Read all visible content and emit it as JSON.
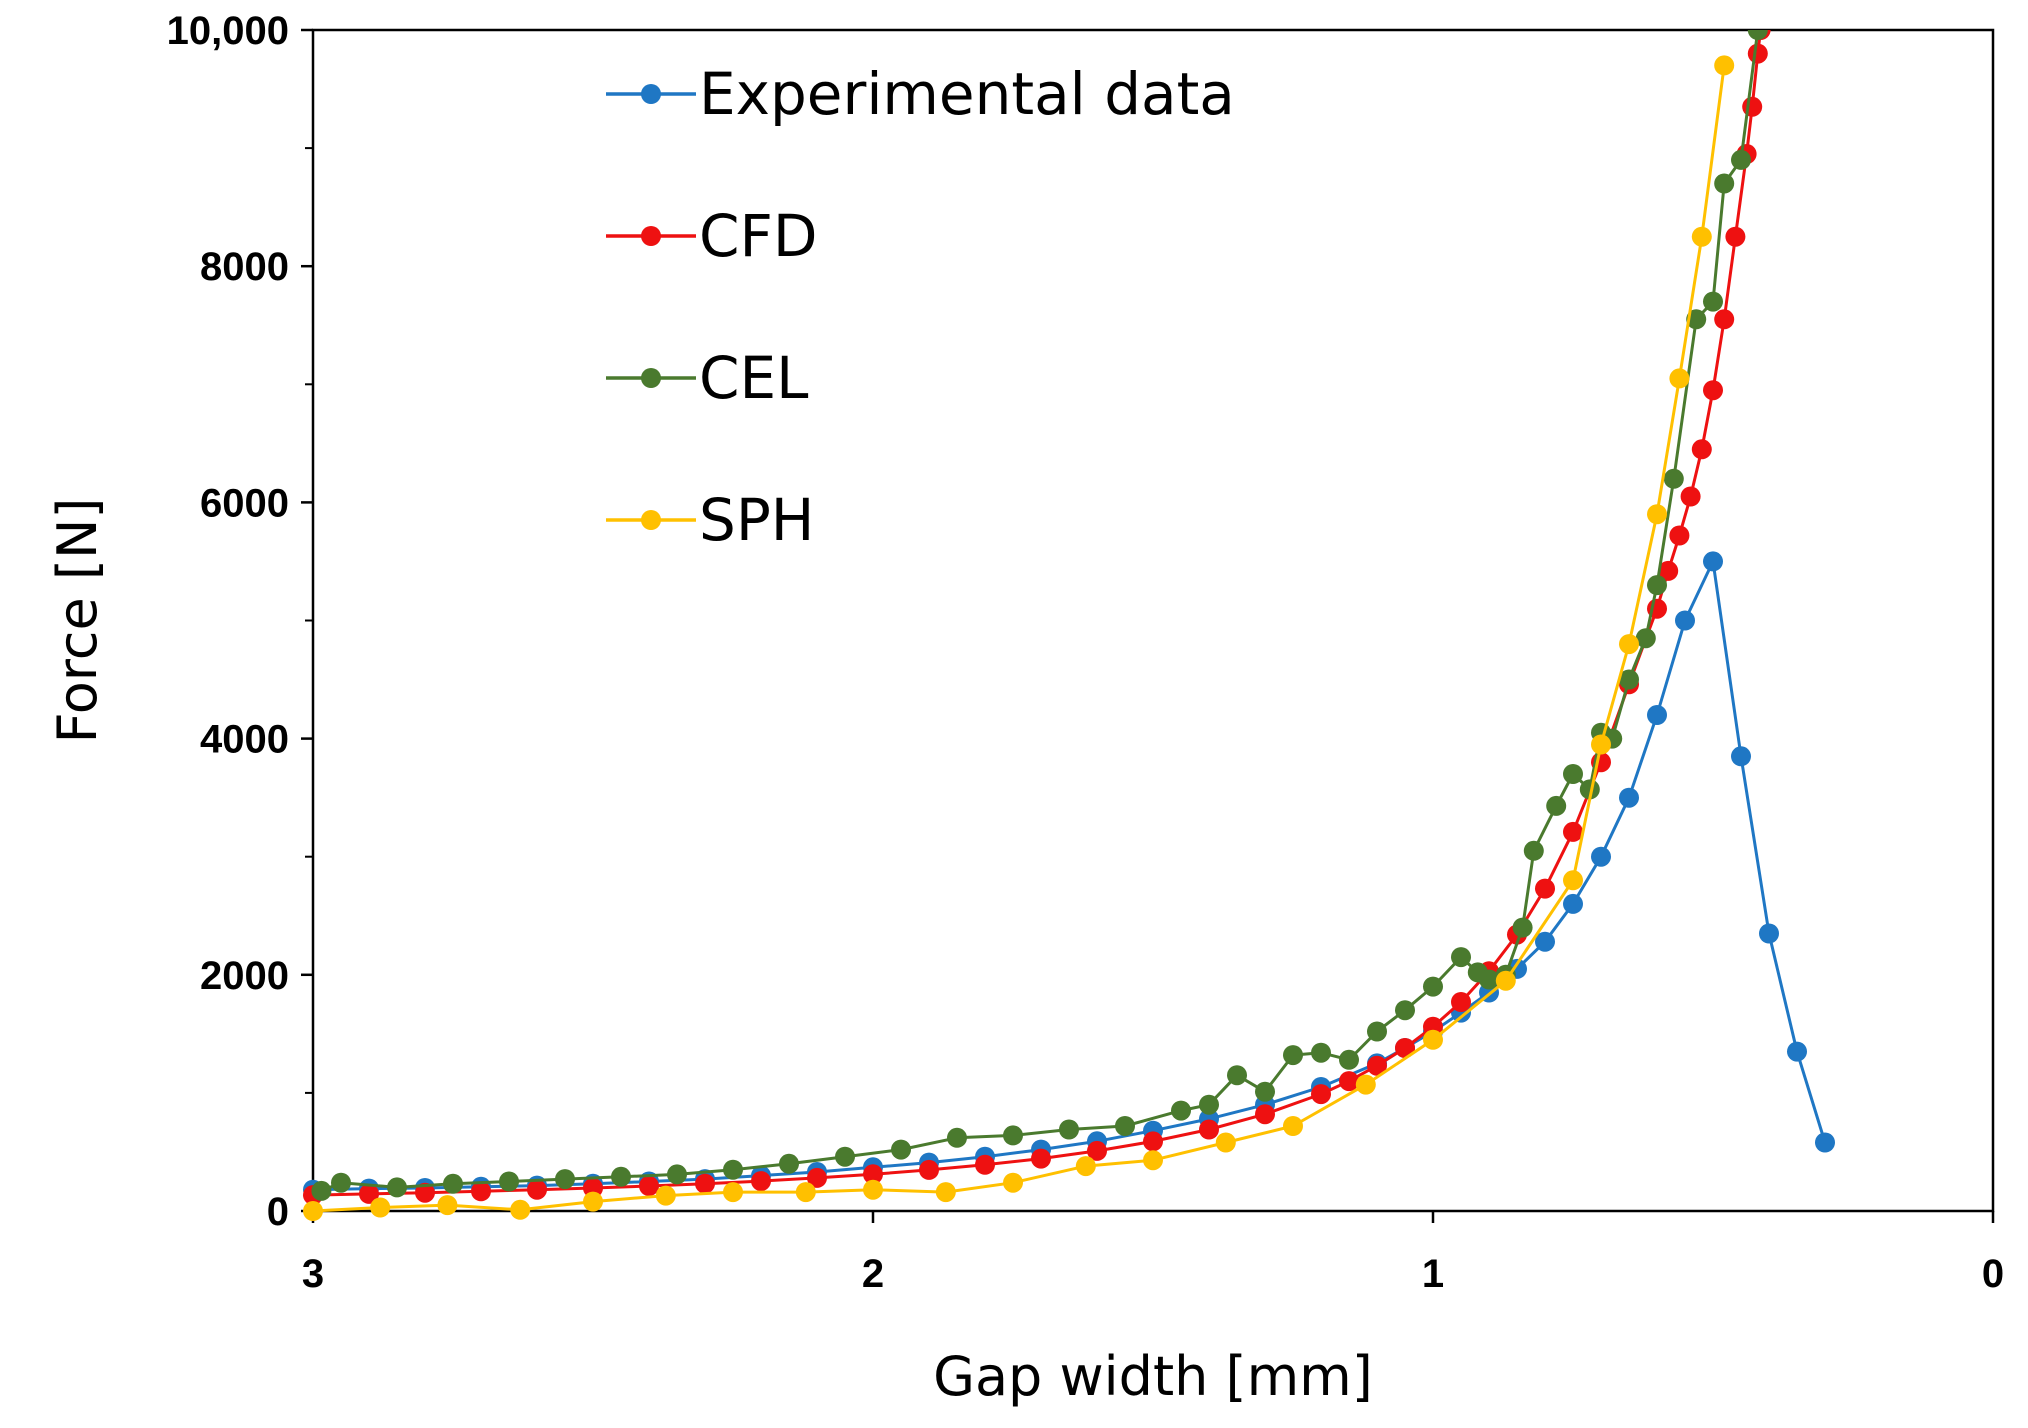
{
  "chart_data": {
    "type": "line",
    "title": "",
    "xlabel": "Gap width [mm]",
    "ylabel": "Force [N]",
    "xlim": [
      3,
      0
    ],
    "ylim": [
      0,
      10000
    ],
    "x_reversed": true,
    "x_ticks": [
      3,
      2,
      1,
      0
    ],
    "x_tick_labels": [
      "3",
      "2",
      "1",
      "0"
    ],
    "y_ticks": [
      0,
      2000,
      4000,
      6000,
      8000,
      10000
    ],
    "y_tick_labels": [
      "0",
      "2000",
      "4000",
      "6000",
      "8000",
      "10,000"
    ],
    "y_minor_step": 1000,
    "grid": false,
    "legend_position": "top-left",
    "series": [
      {
        "name": "Experimental data",
        "color": "#1f77c4",
        "points": [
          [
            3.0,
            180
          ],
          [
            2.9,
            190
          ],
          [
            2.8,
            195
          ],
          [
            2.7,
            205
          ],
          [
            2.6,
            215
          ],
          [
            2.5,
            230
          ],
          [
            2.4,
            250
          ],
          [
            2.3,
            270
          ],
          [
            2.2,
            300
          ],
          [
            2.1,
            330
          ],
          [
            2.0,
            370
          ],
          [
            1.9,
            410
          ],
          [
            1.8,
            460
          ],
          [
            1.7,
            520
          ],
          [
            1.6,
            590
          ],
          [
            1.5,
            680
          ],
          [
            1.4,
            780
          ],
          [
            1.3,
            900
          ],
          [
            1.2,
            1050
          ],
          [
            1.1,
            1250
          ],
          [
            1.05,
            1380
          ],
          [
            1.0,
            1520
          ],
          [
            0.95,
            1680
          ],
          [
            0.9,
            1850
          ],
          [
            0.85,
            2050
          ],
          [
            0.8,
            2280
          ],
          [
            0.75,
            2600
          ],
          [
            0.7,
            3000
          ],
          [
            0.65,
            3500
          ],
          [
            0.6,
            4200
          ],
          [
            0.55,
            5000
          ],
          [
            0.5,
            5500
          ],
          [
            0.45,
            3850
          ],
          [
            0.4,
            2350
          ],
          [
            0.35,
            1350
          ],
          [
            0.3,
            580
          ]
        ]
      },
      {
        "name": "CFD",
        "color": "#ee1111",
        "points": [
          [
            3.0,
            135
          ],
          [
            2.9,
            145
          ],
          [
            2.8,
            155
          ],
          [
            2.7,
            167
          ],
          [
            2.6,
            180
          ],
          [
            2.5,
            195
          ],
          [
            2.4,
            212
          ],
          [
            2.3,
            231
          ],
          [
            2.2,
            253
          ],
          [
            2.1,
            280
          ],
          [
            2.0,
            311
          ],
          [
            1.9,
            348
          ],
          [
            1.8,
            391
          ],
          [
            1.7,
            444
          ],
          [
            1.6,
            509
          ],
          [
            1.5,
            589
          ],
          [
            1.4,
            690
          ],
          [
            1.3,
            820
          ],
          [
            1.2,
            990
          ],
          [
            1.15,
            1100
          ],
          [
            1.1,
            1230
          ],
          [
            1.05,
            1380
          ],
          [
            1.0,
            1560
          ],
          [
            0.95,
            1770
          ],
          [
            0.9,
            2030
          ],
          [
            0.85,
            2340
          ],
          [
            0.8,
            2730
          ],
          [
            0.75,
            3210
          ],
          [
            0.7,
            3800
          ],
          [
            0.65,
            4460
          ],
          [
            0.6,
            5100
          ],
          [
            0.58,
            5420
          ],
          [
            0.56,
            5720
          ],
          [
            0.54,
            6050
          ],
          [
            0.52,
            6450
          ],
          [
            0.5,
            6950
          ],
          [
            0.48,
            7550
          ],
          [
            0.46,
            8250
          ],
          [
            0.44,
            8950
          ],
          [
            0.43,
            9350
          ],
          [
            0.42,
            9800
          ],
          [
            0.415,
            10000
          ]
        ]
      },
      {
        "name": "CEL",
        "color": "#4a7a2e",
        "points": [
          [
            2.985,
            170
          ],
          [
            2.95,
            240
          ],
          [
            2.85,
            200
          ],
          [
            2.75,
            230
          ],
          [
            2.65,
            250
          ],
          [
            2.55,
            270
          ],
          [
            2.45,
            290
          ],
          [
            2.35,
            310
          ],
          [
            2.25,
            350
          ],
          [
            2.15,
            400
          ],
          [
            2.05,
            460
          ],
          [
            1.95,
            520
          ],
          [
            1.85,
            620
          ],
          [
            1.75,
            640
          ],
          [
            1.65,
            690
          ],
          [
            1.55,
            720
          ],
          [
            1.45,
            850
          ],
          [
            1.4,
            900
          ],
          [
            1.35,
            1150
          ],
          [
            1.3,
            1010
          ],
          [
            1.25,
            1320
          ],
          [
            1.2,
            1340
          ],
          [
            1.15,
            1280
          ],
          [
            1.1,
            1520
          ],
          [
            1.05,
            1700
          ],
          [
            1.0,
            1900
          ],
          [
            0.95,
            2150
          ],
          [
            0.92,
            2020
          ],
          [
            0.9,
            1960
          ],
          [
            0.87,
            2000
          ],
          [
            0.84,
            2400
          ],
          [
            0.82,
            3050
          ],
          [
            0.78,
            3430
          ],
          [
            0.75,
            3700
          ],
          [
            0.72,
            3570
          ],
          [
            0.7,
            4050
          ],
          [
            0.68,
            4000
          ],
          [
            0.65,
            4500
          ],
          [
            0.62,
            4850
          ],
          [
            0.6,
            5300
          ],
          [
            0.57,
            6200
          ],
          [
            0.53,
            7550
          ],
          [
            0.5,
            7700
          ],
          [
            0.48,
            8700
          ],
          [
            0.45,
            8900
          ],
          [
            0.42,
            10000
          ]
        ]
      },
      {
        "name": "SPH",
        "color": "#ffc000",
        "points": [
          [
            3.0,
            0
          ],
          [
            2.88,
            30
          ],
          [
            2.76,
            50
          ],
          [
            2.63,
            10
          ],
          [
            2.5,
            80
          ],
          [
            2.37,
            130
          ],
          [
            2.25,
            160
          ],
          [
            2.12,
            160
          ],
          [
            2.0,
            180
          ],
          [
            1.87,
            160
          ],
          [
            1.75,
            240
          ],
          [
            1.62,
            380
          ],
          [
            1.5,
            430
          ],
          [
            1.37,
            580
          ],
          [
            1.25,
            720
          ],
          [
            1.12,
            1070
          ],
          [
            1.0,
            1450
          ],
          [
            0.87,
            1950
          ],
          [
            0.75,
            2800
          ],
          [
            0.7,
            3950
          ],
          [
            0.65,
            4800
          ],
          [
            0.6,
            5900
          ],
          [
            0.56,
            7050
          ],
          [
            0.52,
            8250
          ],
          [
            0.48,
            9700
          ]
        ]
      }
    ]
  }
}
